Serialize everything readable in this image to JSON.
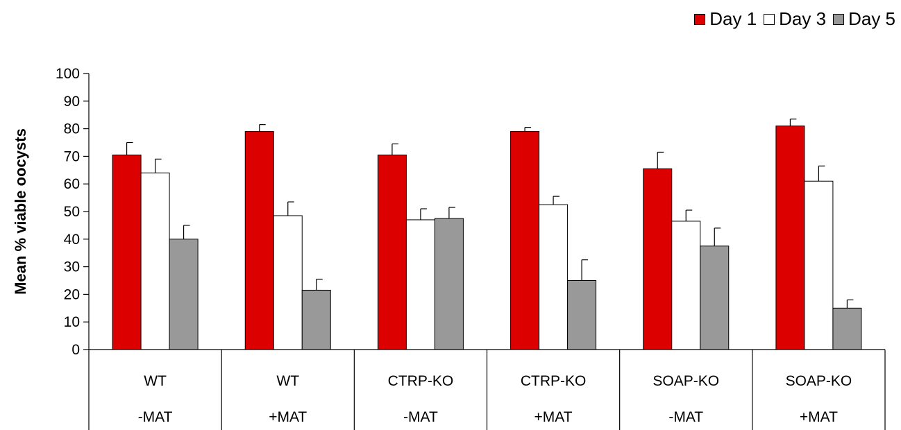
{
  "legend": {
    "day1": "Day 1",
    "day3": "Day 3",
    "day5": "Day 5"
  },
  "chart_data": {
    "type": "bar",
    "ylabel": "Mean %  viable oocysts",
    "ylim": [
      0,
      100
    ],
    "yticks": [
      0,
      10,
      20,
      30,
      40,
      50,
      60,
      70,
      80,
      90,
      100
    ],
    "grid": false,
    "legend_position": "top-right",
    "categories": [
      {
        "line1": "WT",
        "line2": "-MAT"
      },
      {
        "line1": "WT",
        "line2": "+MAT"
      },
      {
        "line1": "CTRP-KO",
        "line2": "-MAT"
      },
      {
        "line1": "CTRP-KO",
        "line2": "+MAT"
      },
      {
        "line1": "SOAP-KO",
        "line2": "-MAT"
      },
      {
        "line1": "SOAP-KO",
        "line2": "+MAT"
      }
    ],
    "series": [
      {
        "name": "Day 1",
        "color": "#dd0000",
        "values": [
          70.5,
          79,
          70.5,
          79,
          65.5,
          81
        ],
        "errors": [
          4.5,
          2.5,
          4,
          1.5,
          6,
          2.5
        ]
      },
      {
        "name": "Day 3",
        "color": "#ffffff",
        "values": [
          64,
          48.5,
          47,
          52.5,
          46.5,
          61
        ],
        "errors": [
          5,
          5,
          4,
          3,
          4,
          5.5
        ]
      },
      {
        "name": "Day 5",
        "color": "#999999",
        "values": [
          40,
          21.5,
          47.5,
          25,
          37.5,
          15
        ],
        "errors": [
          5,
          4,
          4,
          7.5,
          6.5,
          3
        ]
      }
    ]
  }
}
